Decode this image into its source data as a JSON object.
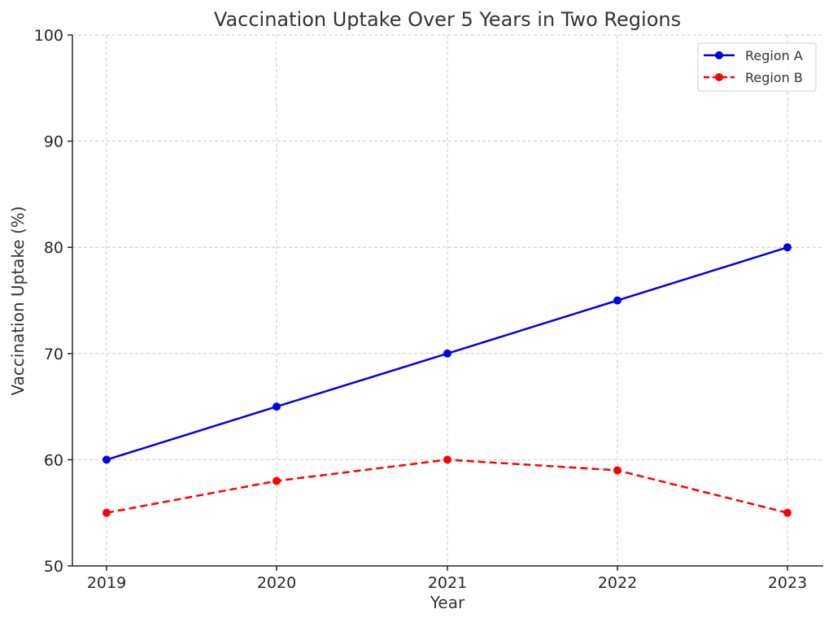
{
  "chart_data": {
    "type": "line",
    "title": "Vaccination Uptake Over 5 Years in Two Regions",
    "xlabel": "Year",
    "ylabel": "Vaccination Uptake (%)",
    "categories": [
      "2019",
      "2020",
      "2021",
      "2022",
      "2023"
    ],
    "ylim": [
      50,
      100
    ],
    "yticks": [
      50,
      60,
      70,
      80,
      90,
      100
    ],
    "grid": true,
    "legend_position": "top-right",
    "series": [
      {
        "name": "Region A",
        "values": [
          60,
          65,
          70,
          75,
          80
        ],
        "color": "#0000ee",
        "line_style": "solid",
        "marker": "circle"
      },
      {
        "name": "Region B",
        "values": [
          55,
          58,
          60,
          59,
          55
        ],
        "color": "#ff0000",
        "line_style": "dashed",
        "marker": "circle"
      }
    ]
  }
}
